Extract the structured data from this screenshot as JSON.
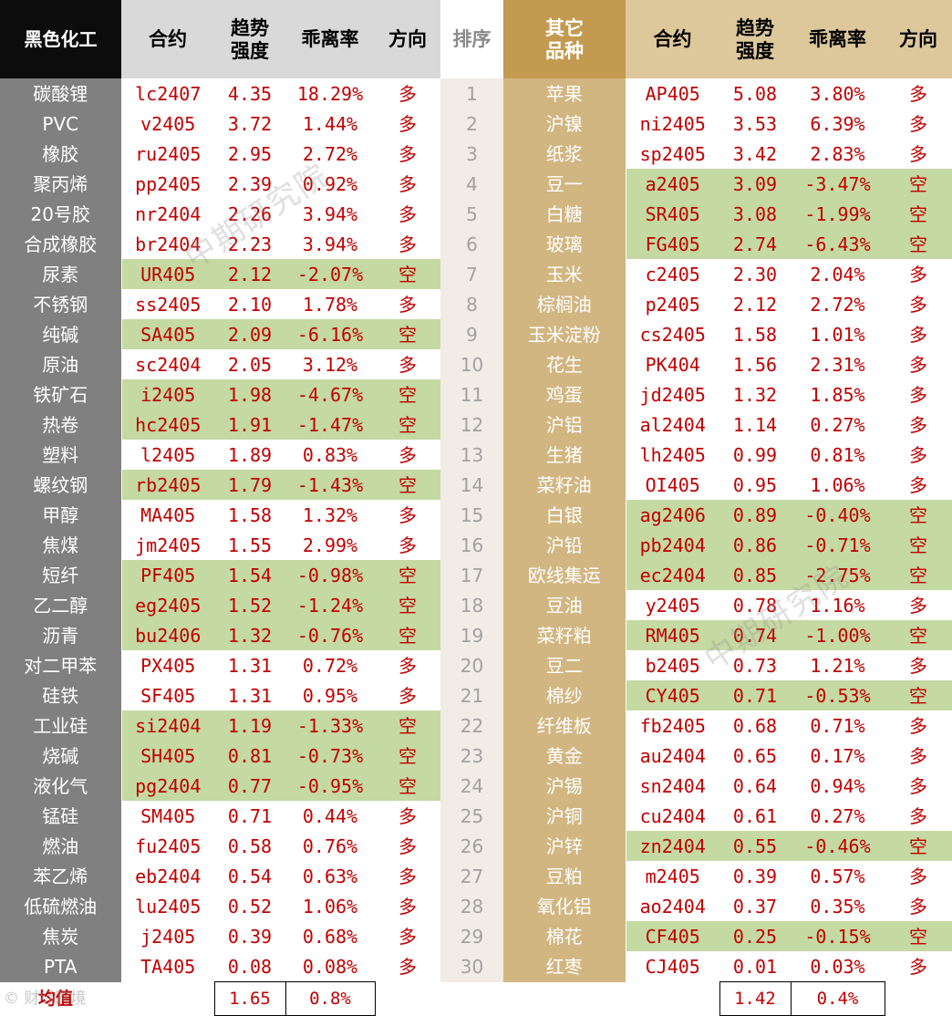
{
  "header": {
    "left_group": "黑色化工",
    "contract": "合约",
    "trend_line1": "趋势",
    "trend_line2": "强度",
    "deviation": "乖离率",
    "direction": "方向",
    "rank": "排序",
    "right_group_line1": "其它",
    "right_group_line2": "品种"
  },
  "colors": {
    "header_black": "#0c0c0c",
    "header_grey": "#d9d9d9",
    "header_gold": "#c39a4f",
    "header_cream": "#ddc89c",
    "name_left": "#808080",
    "name_right": "#d2b682",
    "short_highlight": "#c5d9a2",
    "long_text": "#c00000"
  },
  "rows": [
    {
      "rank": "1",
      "l": {
        "name": "碳酸锂",
        "code": "lc2407",
        "trend": "4.35",
        "dev": "18.29%",
        "dir": "多"
      },
      "r": {
        "name": "苹果",
        "code": "AP405",
        "trend": "5.08",
        "dev": "3.80%",
        "dir": "多"
      }
    },
    {
      "rank": "2",
      "l": {
        "name": "PVC",
        "code": "v2405",
        "trend": "3.72",
        "dev": "1.44%",
        "dir": "多"
      },
      "r": {
        "name": "沪镍",
        "code": "ni2405",
        "trend": "3.53",
        "dev": "6.39%",
        "dir": "多"
      }
    },
    {
      "rank": "3",
      "l": {
        "name": "橡胶",
        "code": "ru2405",
        "trend": "2.95",
        "dev": "2.72%",
        "dir": "多"
      },
      "r": {
        "name": "纸浆",
        "code": "sp2405",
        "trend": "3.42",
        "dev": "2.83%",
        "dir": "多"
      }
    },
    {
      "rank": "4",
      "l": {
        "name": "聚丙烯",
        "code": "pp2405",
        "trend": "2.39",
        "dev": "0.92%",
        "dir": "多"
      },
      "r": {
        "name": "豆一",
        "code": "a2405",
        "trend": "3.09",
        "dev": "-3.47%",
        "dir": "空"
      }
    },
    {
      "rank": "5",
      "l": {
        "name": "20号胶",
        "code": "nr2404",
        "trend": "2.26",
        "dev": "3.94%",
        "dir": "多"
      },
      "r": {
        "name": "白糖",
        "code": "SR405",
        "trend": "3.08",
        "dev": "-1.99%",
        "dir": "空"
      }
    },
    {
      "rank": "6",
      "l": {
        "name": "合成橡胶",
        "code": "br2404",
        "trend": "2.23",
        "dev": "3.94%",
        "dir": "多"
      },
      "r": {
        "name": "玻璃",
        "code": "FG405",
        "trend": "2.74",
        "dev": "-6.43%",
        "dir": "空"
      }
    },
    {
      "rank": "7",
      "l": {
        "name": "尿素",
        "code": "UR405",
        "trend": "2.12",
        "dev": "-2.07%",
        "dir": "空"
      },
      "r": {
        "name": "玉米",
        "code": "c2405",
        "trend": "2.30",
        "dev": "2.04%",
        "dir": "多"
      }
    },
    {
      "rank": "8",
      "l": {
        "name": "不锈钢",
        "code": "ss2405",
        "trend": "2.10",
        "dev": "1.78%",
        "dir": "多"
      },
      "r": {
        "name": "棕榈油",
        "code": "p2405",
        "trend": "2.12",
        "dev": "2.72%",
        "dir": "多"
      }
    },
    {
      "rank": "9",
      "l": {
        "name": "纯碱",
        "code": "SA405",
        "trend": "2.09",
        "dev": "-6.16%",
        "dir": "空"
      },
      "r": {
        "name": "玉米淀粉",
        "code": "cs2405",
        "trend": "1.58",
        "dev": "1.01%",
        "dir": "多"
      }
    },
    {
      "rank": "10",
      "l": {
        "name": "原油",
        "code": "sc2404",
        "trend": "2.05",
        "dev": "3.12%",
        "dir": "多"
      },
      "r": {
        "name": "花生",
        "code": "PK404",
        "trend": "1.56",
        "dev": "2.31%",
        "dir": "多"
      }
    },
    {
      "rank": "11",
      "l": {
        "name": "铁矿石",
        "code": "i2405",
        "trend": "1.98",
        "dev": "-4.67%",
        "dir": "空"
      },
      "r": {
        "name": "鸡蛋",
        "code": "jd2405",
        "trend": "1.32",
        "dev": "1.85%",
        "dir": "多"
      }
    },
    {
      "rank": "12",
      "l": {
        "name": "热卷",
        "code": "hc2405",
        "trend": "1.91",
        "dev": "-1.47%",
        "dir": "空"
      },
      "r": {
        "name": "沪铝",
        "code": "al2404",
        "trend": "1.14",
        "dev": "0.27%",
        "dir": "多"
      }
    },
    {
      "rank": "13",
      "l": {
        "name": "塑料",
        "code": "l2405",
        "trend": "1.89",
        "dev": "0.83%",
        "dir": "多"
      },
      "r": {
        "name": "生猪",
        "code": "lh2405",
        "trend": "0.99",
        "dev": "0.81%",
        "dir": "多"
      }
    },
    {
      "rank": "14",
      "l": {
        "name": "螺纹钢",
        "code": "rb2405",
        "trend": "1.79",
        "dev": "-1.43%",
        "dir": "空"
      },
      "r": {
        "name": "菜籽油",
        "code": "OI405",
        "trend": "0.95",
        "dev": "1.06%",
        "dir": "多"
      }
    },
    {
      "rank": "15",
      "l": {
        "name": "甲醇",
        "code": "MA405",
        "trend": "1.58",
        "dev": "1.32%",
        "dir": "多"
      },
      "r": {
        "name": "白银",
        "code": "ag2406",
        "trend": "0.89",
        "dev": "-0.40%",
        "dir": "空"
      }
    },
    {
      "rank": "16",
      "l": {
        "name": "焦煤",
        "code": "jm2405",
        "trend": "1.55",
        "dev": "2.99%",
        "dir": "多"
      },
      "r": {
        "name": "沪铅",
        "code": "pb2404",
        "trend": "0.86",
        "dev": "-0.71%",
        "dir": "空"
      }
    },
    {
      "rank": "17",
      "l": {
        "name": "短纤",
        "code": "PF405",
        "trend": "1.54",
        "dev": "-0.98%",
        "dir": "空"
      },
      "r": {
        "name": "欧线集运",
        "code": "ec2404",
        "trend": "0.85",
        "dev": "-2.75%",
        "dir": "空"
      }
    },
    {
      "rank": "18",
      "l": {
        "name": "乙二醇",
        "code": "eg2405",
        "trend": "1.52",
        "dev": "-1.24%",
        "dir": "空"
      },
      "r": {
        "name": "豆油",
        "code": "y2405",
        "trend": "0.78",
        "dev": "1.16%",
        "dir": "多"
      }
    },
    {
      "rank": "19",
      "l": {
        "name": "沥青",
        "code": "bu2406",
        "trend": "1.32",
        "dev": "-0.76%",
        "dir": "空"
      },
      "r": {
        "name": "菜籽粕",
        "code": "RM405",
        "trend": "0.74",
        "dev": "-1.00%",
        "dir": "空"
      }
    },
    {
      "rank": "20",
      "l": {
        "name": "对二甲苯",
        "code": "PX405",
        "trend": "1.31",
        "dev": "0.72%",
        "dir": "多"
      },
      "r": {
        "name": "豆二",
        "code": "b2405",
        "trend": "0.73",
        "dev": "1.21%",
        "dir": "多"
      }
    },
    {
      "rank": "21",
      "l": {
        "name": "硅铁",
        "code": "SF405",
        "trend": "1.31",
        "dev": "0.95%",
        "dir": "多"
      },
      "r": {
        "name": "棉纱",
        "code": "CY405",
        "trend": "0.71",
        "dev": "-0.53%",
        "dir": "空"
      }
    },
    {
      "rank": "22",
      "l": {
        "name": "工业硅",
        "code": "si2404",
        "trend": "1.19",
        "dev": "-1.33%",
        "dir": "空"
      },
      "r": {
        "name": "纤维板",
        "code": "fb2405",
        "trend": "0.68",
        "dev": "0.71%",
        "dir": "多"
      }
    },
    {
      "rank": "23",
      "l": {
        "name": "烧碱",
        "code": "SH405",
        "trend": "0.81",
        "dev": "-0.73%",
        "dir": "空"
      },
      "r": {
        "name": "黄金",
        "code": "au2404",
        "trend": "0.65",
        "dev": "0.17%",
        "dir": "多"
      }
    },
    {
      "rank": "24",
      "l": {
        "name": "液化气",
        "code": "pg2404",
        "trend": "0.77",
        "dev": "-0.95%",
        "dir": "空"
      },
      "r": {
        "name": "沪锡",
        "code": "sn2404",
        "trend": "0.64",
        "dev": "0.94%",
        "dir": "多"
      }
    },
    {
      "rank": "25",
      "l": {
        "name": "锰硅",
        "code": "SM405",
        "trend": "0.71",
        "dev": "0.44%",
        "dir": "多"
      },
      "r": {
        "name": "沪铜",
        "code": "cu2404",
        "trend": "0.61",
        "dev": "0.27%",
        "dir": "多"
      }
    },
    {
      "rank": "26",
      "l": {
        "name": "燃油",
        "code": "fu2405",
        "trend": "0.58",
        "dev": "0.76%",
        "dir": "多"
      },
      "r": {
        "name": "沪锌",
        "code": "zn2404",
        "trend": "0.55",
        "dev": "-0.46%",
        "dir": "空"
      }
    },
    {
      "rank": "27",
      "l": {
        "name": "苯乙烯",
        "code": "eb2404",
        "trend": "0.54",
        "dev": "0.63%",
        "dir": "多"
      },
      "r": {
        "name": "豆粕",
        "code": "m2405",
        "trend": "0.39",
        "dev": "0.57%",
        "dir": "多"
      }
    },
    {
      "rank": "28",
      "l": {
        "name": "低硫燃油",
        "code": "lu2405",
        "trend": "0.52",
        "dev": "1.06%",
        "dir": "多"
      },
      "r": {
        "name": "氧化铝",
        "code": "ao2404",
        "trend": "0.37",
        "dev": "0.35%",
        "dir": "多"
      }
    },
    {
      "rank": "29",
      "l": {
        "name": "焦炭",
        "code": "j2405",
        "trend": "0.39",
        "dev": "0.68%",
        "dir": "多"
      },
      "r": {
        "name": "棉花",
        "code": "CF405",
        "trend": "0.25",
        "dev": "-0.15%",
        "dir": "空"
      }
    },
    {
      "rank": "30",
      "l": {
        "name": "PTA",
        "code": "TA405",
        "trend": "0.08",
        "dev": "0.08%",
        "dir": "多"
      },
      "r": {
        "name": "红枣",
        "code": "CJ405",
        "trend": "0.01",
        "dev": "0.03%",
        "dir": "多"
      }
    }
  ],
  "average": {
    "label": "均值",
    "left_trend": "1.65",
    "left_dev": "0.8%",
    "right_trend": "1.42",
    "right_dev": "0.4%"
  },
  "watermarks": {
    "main": "中期研究院",
    "bottom": "©  财经跨境"
  }
}
